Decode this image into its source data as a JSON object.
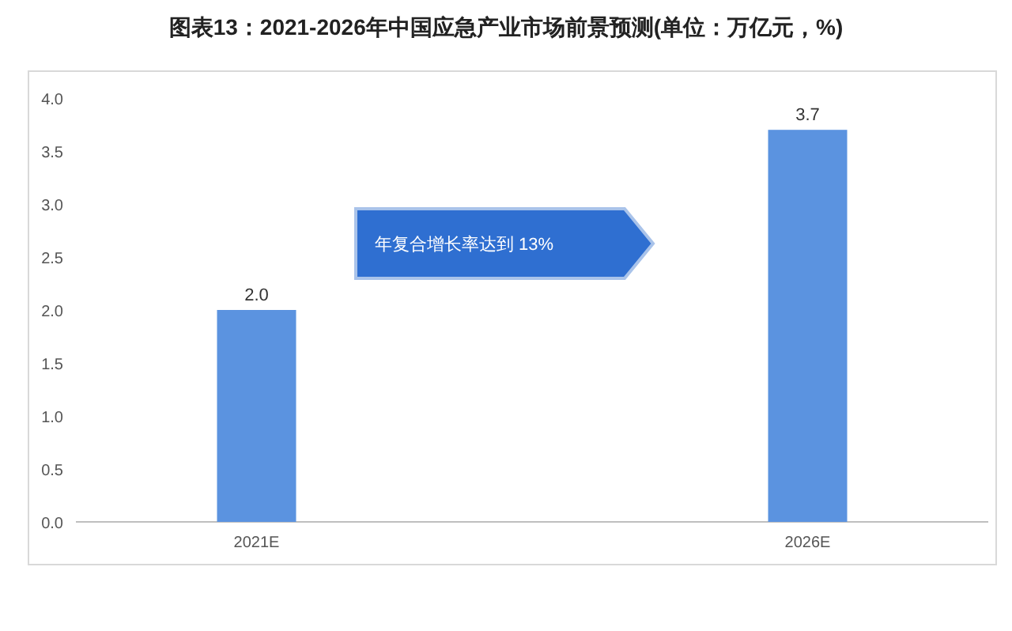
{
  "chart_data": {
    "type": "bar",
    "title": "图表13：2021-2026年中国应急产业市场前景预测(单位：万亿元，%)",
    "categories": [
      "2021E",
      "2026E"
    ],
    "values": [
      2.0,
      3.7
    ],
    "value_labels": [
      "2.0",
      "3.7"
    ],
    "color": "#5b93e0",
    "ylim": [
      0,
      4
    ],
    "yticks": [
      {
        "value": 0,
        "label": "0.0"
      },
      {
        "value": 0.5,
        "label": "0.5"
      },
      {
        "value": 1,
        "label": "1.0"
      },
      {
        "value": 1.5,
        "label": "1.5"
      },
      {
        "value": 2,
        "label": "2.0"
      },
      {
        "value": 2.5,
        "label": "2.5"
      },
      {
        "value": 3,
        "label": "3.0"
      },
      {
        "value": 3.5,
        "label": "3.5"
      },
      {
        "value": 4,
        "label": "4.0"
      }
    ],
    "grid": false,
    "annotations": [
      "年复合增长率达到 13%"
    ]
  }
}
